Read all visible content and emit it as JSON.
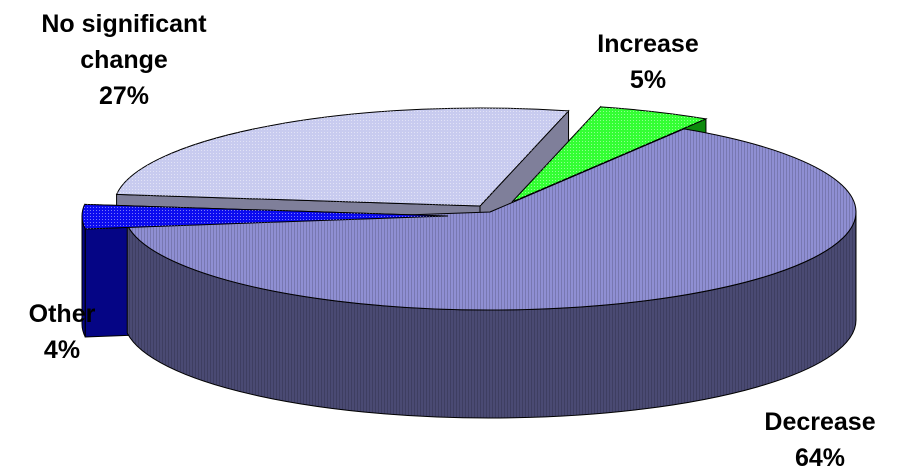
{
  "chart_data": {
    "type": "pie",
    "style": "3d-exploded",
    "slices": [
      {
        "name": "Decrease",
        "label": "Decrease",
        "value": 64,
        "value_label": "64%",
        "top_color": "#8f8fd3",
        "side_color": "#4a4a73"
      },
      {
        "name": "Other",
        "label": "Other",
        "value": 4,
        "value_label": "4%",
        "top_color": "#0b0bf0",
        "side_color": "#050585"
      },
      {
        "name": "No significant change",
        "label": [
          "No significant",
          "change"
        ],
        "value": 27,
        "value_label": "27%",
        "top_color": "#c8cbef",
        "side_color": "#7f7f9a"
      },
      {
        "name": "Increase",
        "label": "Increase",
        "value": 5,
        "value_label": "5%",
        "top_color": "#33ff33",
        "side_color": "#0d8a0d"
      }
    ]
  }
}
